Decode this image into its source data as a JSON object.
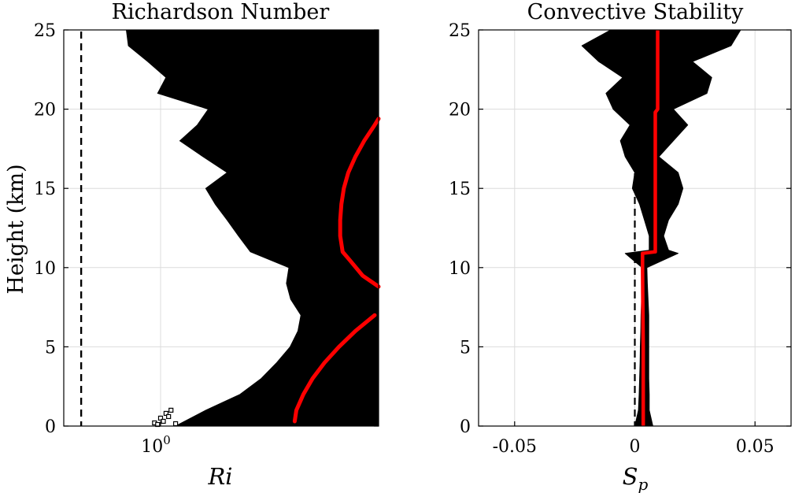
{
  "figure": {
    "ylabel": "Height (km)"
  },
  "chart_data": [
    {
      "type": "line",
      "title": "Richardson Number",
      "xlabel": "Ri",
      "ylabel": "Height (km)",
      "x_scale": "log",
      "ylim": [
        0,
        25
      ],
      "yticks": [
        0,
        5,
        10,
        15,
        20,
        25
      ],
      "xticks": [
        {
          "value": 1,
          "label_base": "10",
          "label_exp": "0"
        }
      ],
      "grid": true,
      "reference_line": {
        "x": 0.25,
        "style": "dashed",
        "color": "#000000"
      },
      "series": [
        {
          "color": "#000000",
          "style": "filled envelope (ensemble of profiles)",
          "height_km": [
            0,
            1,
            2,
            3,
            4,
            5,
            6,
            7,
            8,
            9,
            10,
            11,
            12,
            13,
            14,
            15,
            16,
            17,
            18,
            19,
            20,
            21,
            22,
            23,
            24,
            25
          ],
          "ri_min": [
            1.3,
            2.2,
            4.0,
            5.8,
            7.6,
            9.6,
            11.0,
            11.6,
            9.7,
            9.0,
            9.4,
            4.8,
            3.9,
            3.2,
            2.6,
            2.2,
            3.2,
            2.1,
            1.4,
            1.9,
            2.3,
            0.95,
            1.1,
            0.8,
            0.57,
            0.55
          ]
        },
        {
          "color": "#ff0000",
          "style": "line with square markers",
          "segments": [
            {
              "height_km": [
                0.3,
                1,
                2,
                3,
                4,
                5,
                6,
                7
              ],
              "ri": [
                10.4,
                10.7,
                12.1,
                14.2,
                17.5,
                22.5,
                30.0,
                42.0
              ]
            },
            {
              "height_km": [
                8.8,
                9.5,
                10.5,
                11.0,
                12,
                13,
                14,
                15,
                16,
                17,
                18,
                19,
                19.4
              ],
              "ri": [
                45.0,
                34.0,
                27.0,
                24.0,
                23.0,
                23.0,
                23.5,
                24.5,
                26.5,
                30.0,
                35.0,
                42.0,
                45.0
              ]
            }
          ]
        }
      ]
    },
    {
      "type": "line",
      "title": "Convective Stability",
      "xlabel": "S_p",
      "ylabel": "Height (km)",
      "xlim": [
        -0.065,
        0.065
      ],
      "ylim": [
        0,
        25
      ],
      "xticks": [
        -0.05,
        0,
        0.05
      ],
      "xtick_labels": [
        "-0.05",
        "0",
        "0.05"
      ],
      "yticks": [
        0,
        5,
        10,
        15,
        20,
        25
      ],
      "grid": true,
      "reference_line": {
        "x": 0,
        "style": "dashed",
        "color": "#000000"
      },
      "series": [
        {
          "color": "#000000",
          "style": "filled envelope (ensemble of profiles)",
          "height_km": [
            0,
            1,
            2,
            3,
            4,
            5,
            6,
            7,
            8,
            9,
            10,
            10.9,
            11.1,
            12,
            13,
            14,
            15,
            16,
            17,
            18,
            19,
            20,
            21,
            22,
            23,
            24,
            25
          ],
          "sp_min": [
            0.0,
            0.0015,
            0.0018,
            0.002,
            0.0022,
            0.0023,
            0.0025,
            0.0026,
            0.0028,
            0.003,
            0.003,
            -0.004,
            0.006,
            0.006,
            0.004,
            0.002,
            -0.001,
            0.0,
            -0.004,
            -0.006,
            -0.002,
            -0.009,
            -0.012,
            -0.005,
            -0.015,
            -0.022,
            -0.01
          ],
          "sp_max": [
            0.0075,
            0.006,
            0.006,
            0.0058,
            0.0058,
            0.0058,
            0.0058,
            0.0058,
            0.0055,
            0.0052,
            0.005,
            0.018,
            0.014,
            0.012,
            0.014,
            0.018,
            0.02,
            0.018,
            0.01,
            0.016,
            0.022,
            0.016,
            0.03,
            0.032,
            0.024,
            0.04,
            0.044
          ]
        },
        {
          "color": "#ff0000",
          "style": "line with square markers",
          "height_km": [
            0,
            2,
            5,
            8,
            10,
            10.9,
            11.0,
            15,
            19.8,
            20.0,
            25
          ],
          "sp": [
            0.0035,
            0.0035,
            0.0035,
            0.0033,
            0.0032,
            0.0032,
            0.0085,
            0.0085,
            0.0085,
            0.0095,
            0.0095
          ]
        }
      ]
    }
  ]
}
